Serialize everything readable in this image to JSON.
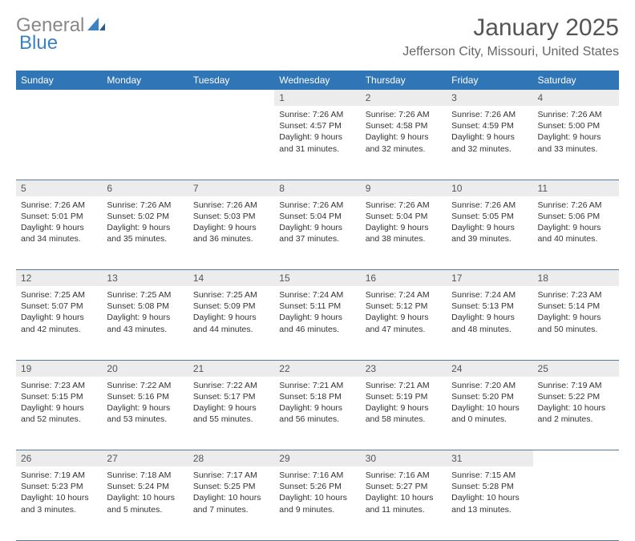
{
  "logo": {
    "gray": "General",
    "blue": "Blue"
  },
  "title": "January 2025",
  "location": "Jefferson City, Missouri, United States",
  "header_bg": "#3075b5",
  "header_fg": "#ffffff",
  "daynum_bg": "#ececec",
  "rule_color": "#5a7a9a",
  "days": [
    "Sunday",
    "Monday",
    "Tuesday",
    "Wednesday",
    "Thursday",
    "Friday",
    "Saturday"
  ],
  "weeks": [
    [
      null,
      null,
      null,
      {
        "n": "1",
        "sr": "7:26 AM",
        "ss": "4:57 PM",
        "dl": "9 hours and 31 minutes."
      },
      {
        "n": "2",
        "sr": "7:26 AM",
        "ss": "4:58 PM",
        "dl": "9 hours and 32 minutes."
      },
      {
        "n": "3",
        "sr": "7:26 AM",
        "ss": "4:59 PM",
        "dl": "9 hours and 32 minutes."
      },
      {
        "n": "4",
        "sr": "7:26 AM",
        "ss": "5:00 PM",
        "dl": "9 hours and 33 minutes."
      }
    ],
    [
      {
        "n": "5",
        "sr": "7:26 AM",
        "ss": "5:01 PM",
        "dl": "9 hours and 34 minutes."
      },
      {
        "n": "6",
        "sr": "7:26 AM",
        "ss": "5:02 PM",
        "dl": "9 hours and 35 minutes."
      },
      {
        "n": "7",
        "sr": "7:26 AM",
        "ss": "5:03 PM",
        "dl": "9 hours and 36 minutes."
      },
      {
        "n": "8",
        "sr": "7:26 AM",
        "ss": "5:04 PM",
        "dl": "9 hours and 37 minutes."
      },
      {
        "n": "9",
        "sr": "7:26 AM",
        "ss": "5:04 PM",
        "dl": "9 hours and 38 minutes."
      },
      {
        "n": "10",
        "sr": "7:26 AM",
        "ss": "5:05 PM",
        "dl": "9 hours and 39 minutes."
      },
      {
        "n": "11",
        "sr": "7:26 AM",
        "ss": "5:06 PM",
        "dl": "9 hours and 40 minutes."
      }
    ],
    [
      {
        "n": "12",
        "sr": "7:25 AM",
        "ss": "5:07 PM",
        "dl": "9 hours and 42 minutes."
      },
      {
        "n": "13",
        "sr": "7:25 AM",
        "ss": "5:08 PM",
        "dl": "9 hours and 43 minutes."
      },
      {
        "n": "14",
        "sr": "7:25 AM",
        "ss": "5:09 PM",
        "dl": "9 hours and 44 minutes."
      },
      {
        "n": "15",
        "sr": "7:24 AM",
        "ss": "5:11 PM",
        "dl": "9 hours and 46 minutes."
      },
      {
        "n": "16",
        "sr": "7:24 AM",
        "ss": "5:12 PM",
        "dl": "9 hours and 47 minutes."
      },
      {
        "n": "17",
        "sr": "7:24 AM",
        "ss": "5:13 PM",
        "dl": "9 hours and 48 minutes."
      },
      {
        "n": "18",
        "sr": "7:23 AM",
        "ss": "5:14 PM",
        "dl": "9 hours and 50 minutes."
      }
    ],
    [
      {
        "n": "19",
        "sr": "7:23 AM",
        "ss": "5:15 PM",
        "dl": "9 hours and 52 minutes."
      },
      {
        "n": "20",
        "sr": "7:22 AM",
        "ss": "5:16 PM",
        "dl": "9 hours and 53 minutes."
      },
      {
        "n": "21",
        "sr": "7:22 AM",
        "ss": "5:17 PM",
        "dl": "9 hours and 55 minutes."
      },
      {
        "n": "22",
        "sr": "7:21 AM",
        "ss": "5:18 PM",
        "dl": "9 hours and 56 minutes."
      },
      {
        "n": "23",
        "sr": "7:21 AM",
        "ss": "5:19 PM",
        "dl": "9 hours and 58 minutes."
      },
      {
        "n": "24",
        "sr": "7:20 AM",
        "ss": "5:20 PM",
        "dl": "10 hours and 0 minutes."
      },
      {
        "n": "25",
        "sr": "7:19 AM",
        "ss": "5:22 PM",
        "dl": "10 hours and 2 minutes."
      }
    ],
    [
      {
        "n": "26",
        "sr": "7:19 AM",
        "ss": "5:23 PM",
        "dl": "10 hours and 3 minutes."
      },
      {
        "n": "27",
        "sr": "7:18 AM",
        "ss": "5:24 PM",
        "dl": "10 hours and 5 minutes."
      },
      {
        "n": "28",
        "sr": "7:17 AM",
        "ss": "5:25 PM",
        "dl": "10 hours and 7 minutes."
      },
      {
        "n": "29",
        "sr": "7:16 AM",
        "ss": "5:26 PM",
        "dl": "10 hours and 9 minutes."
      },
      {
        "n": "30",
        "sr": "7:16 AM",
        "ss": "5:27 PM",
        "dl": "10 hours and 11 minutes."
      },
      {
        "n": "31",
        "sr": "7:15 AM",
        "ss": "5:28 PM",
        "dl": "10 hours and 13 minutes."
      },
      null
    ]
  ]
}
